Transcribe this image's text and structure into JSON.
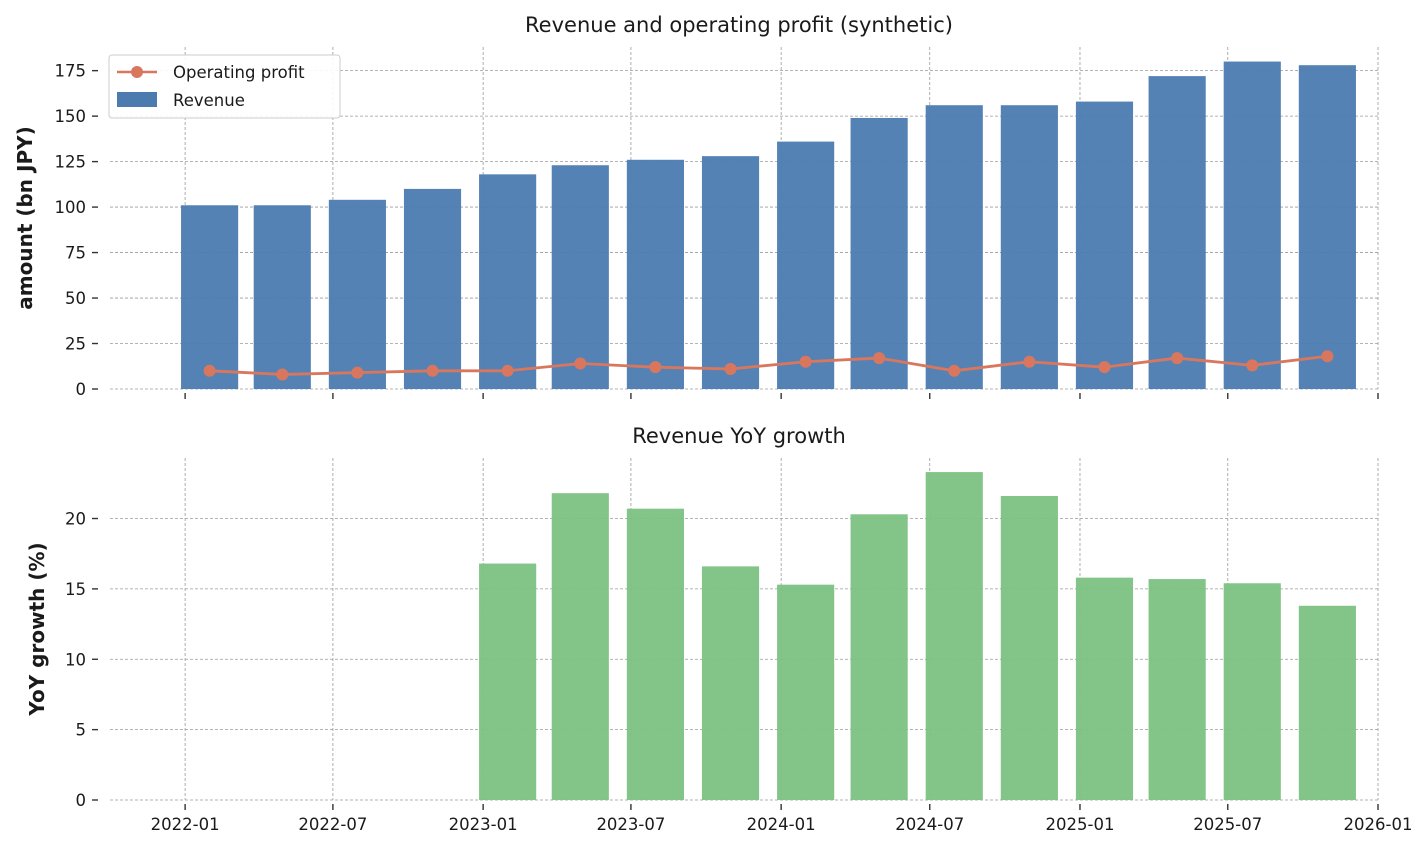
{
  "chart_data": [
    {
      "type": "bar",
      "title": "Revenue and operating profit (synthetic)",
      "ylabel": "amount (bn JPY)",
      "ylim": [
        0,
        188
      ],
      "yticks": [
        0,
        25,
        50,
        75,
        100,
        125,
        150,
        175
      ],
      "grid": true,
      "legend_position": "top-left",
      "x": [
        "2022-01-31",
        "2022-04-30",
        "2022-07-31",
        "2022-10-31",
        "2023-01-31",
        "2023-04-30",
        "2023-07-31",
        "2023-10-31",
        "2024-01-31",
        "2024-04-30",
        "2024-07-31",
        "2024-10-31",
        "2025-01-31",
        "2025-04-30",
        "2025-07-31",
        "2025-10-31"
      ],
      "series": [
        {
          "name": "Revenue",
          "type": "bar",
          "color": "#4c7bb0",
          "values": [
            101,
            101,
            104,
            110,
            118,
            123,
            126,
            128,
            136,
            149,
            156,
            156,
            158,
            172,
            180,
            178
          ]
        },
        {
          "name": "Operating profit",
          "type": "line",
          "color": "#d9775e",
          "values": [
            10,
            8,
            9,
            10,
            10,
            14,
            12,
            11,
            15,
            17,
            10,
            15,
            12,
            17,
            13,
            18
          ]
        }
      ]
    },
    {
      "type": "bar",
      "title": "Revenue YoY growth",
      "ylabel": "YoY growth (%)",
      "ylim": [
        0,
        24.3
      ],
      "yticks": [
        0,
        5,
        10,
        15,
        20
      ],
      "grid": true,
      "x": [
        "2023-01-31",
        "2023-04-30",
        "2023-07-31",
        "2023-10-31",
        "2024-01-31",
        "2024-04-30",
        "2024-07-31",
        "2024-10-31",
        "2025-01-31",
        "2025-04-30",
        "2025-07-31",
        "2025-10-31"
      ],
      "series": [
        {
          "name": "",
          "type": "bar",
          "color": "#7cc283",
          "values": [
            16.8,
            21.8,
            20.7,
            16.6,
            15.3,
            20.3,
            23.3,
            21.6,
            15.8,
            15.7,
            15.4,
            13.8
          ]
        }
      ]
    }
  ],
  "x_axis": {
    "range": [
      "2021-10-01",
      "2026-01-01"
    ],
    "ticks": [
      "2022-01",
      "2022-07",
      "2023-01",
      "2023-07",
      "2024-01",
      "2024-07",
      "2025-01",
      "2025-07",
      "2026-01"
    ]
  }
}
